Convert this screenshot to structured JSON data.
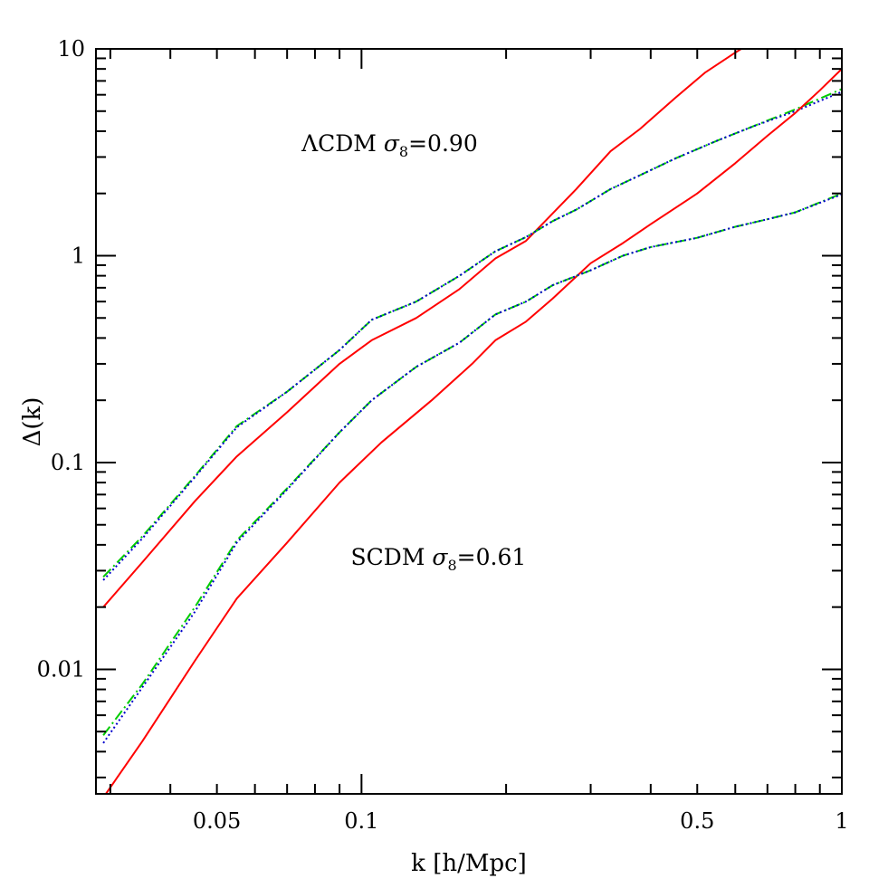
{
  "chart_data": {
    "type": "line",
    "xlabel": "k [h/Mpc]",
    "ylabel": "Δ(k)",
    "xscale": "log",
    "yscale": "log",
    "xlim": [
      0.028,
      1.0
    ],
    "ylim": [
      0.0025,
      10
    ],
    "grid": false,
    "legend": "none",
    "x_tick_labels": [
      {
        "value": 0.05,
        "label": "0.05"
      },
      {
        "value": 0.1,
        "label": "0.1"
      },
      {
        "value": 0.5,
        "label": "0.5"
      },
      {
        "value": 1,
        "label": "1"
      }
    ],
    "y_tick_labels": [
      {
        "value": 0.01,
        "label": "0.01"
      },
      {
        "value": 0.1,
        "label": "0.1"
      },
      {
        "value": 1,
        "label": "1"
      },
      {
        "value": 10,
        "label": "10"
      }
    ],
    "annotations": [
      {
        "prefix": "ΛCDM ",
        "greek": "σ",
        "sub": "8",
        "suffix": "=0.90",
        "at": [
          0.075,
          3.2
        ]
      },
      {
        "prefix": "SCDM ",
        "greek": "σ",
        "sub": "8",
        "suffix": "=0.61",
        "at": [
          0.095,
          0.032
        ]
      }
    ],
    "series": [
      {
        "style": "solid",
        "color": "#ff0000",
        "x": [
          0.029,
          0.035,
          0.045,
          0.055,
          0.07,
          0.09,
          0.105,
          0.13,
          0.16,
          0.19,
          0.22,
          0.25,
          0.28,
          0.33,
          0.38,
          0.45,
          0.52,
          0.6,
          0.68
        ],
        "y": [
          0.02,
          0.033,
          0.065,
          0.107,
          0.175,
          0.3,
          0.39,
          0.5,
          0.69,
          0.97,
          1.18,
          1.6,
          2.1,
          3.2,
          4.1,
          5.8,
          7.7,
          9.6,
          11.5
        ]
      },
      {
        "style": "dash-dot",
        "color": "#00cc00",
        "x": [
          0.029,
          0.035,
          0.045,
          0.055,
          0.07,
          0.09,
          0.105,
          0.13,
          0.16,
          0.19,
          0.22,
          0.25,
          0.28,
          0.33,
          0.38,
          0.45,
          0.55,
          0.65,
          0.8,
          1.0
        ],
        "y": [
          0.028,
          0.044,
          0.086,
          0.15,
          0.22,
          0.35,
          0.49,
          0.6,
          0.8,
          1.05,
          1.23,
          1.47,
          1.67,
          2.1,
          2.45,
          2.95,
          3.6,
          4.2,
          5.1,
          6.4
        ]
      },
      {
        "style": "dotted",
        "color": "#0000cc",
        "x": [
          0.029,
          0.035,
          0.045,
          0.055,
          0.07,
          0.09,
          0.105,
          0.13,
          0.16,
          0.19,
          0.22,
          0.25,
          0.28,
          0.33,
          0.38,
          0.45,
          0.55,
          0.65,
          0.8,
          1.0
        ],
        "y": [
          0.027,
          0.043,
          0.085,
          0.148,
          0.22,
          0.35,
          0.49,
          0.6,
          0.8,
          1.05,
          1.23,
          1.47,
          1.67,
          2.1,
          2.45,
          2.95,
          3.6,
          4.2,
          5.0,
          6.2
        ]
      },
      {
        "style": "solid",
        "color": "#ff0000",
        "x": [
          0.029,
          0.035,
          0.045,
          0.055,
          0.07,
          0.09,
          0.11,
          0.14,
          0.17,
          0.19,
          0.22,
          0.25,
          0.3,
          0.35,
          0.4,
          0.5,
          0.6,
          0.7,
          0.8,
          0.9,
          1.0
        ],
        "y": [
          0.0024,
          0.0045,
          0.011,
          0.022,
          0.041,
          0.08,
          0.125,
          0.2,
          0.3,
          0.39,
          0.48,
          0.62,
          0.92,
          1.15,
          1.42,
          2.0,
          2.8,
          3.8,
          4.9,
          6.3,
          8.0
        ]
      },
      {
        "style": "dash-dot",
        "color": "#00cc00",
        "x": [
          0.029,
          0.035,
          0.045,
          0.055,
          0.07,
          0.09,
          0.105,
          0.13,
          0.16,
          0.19,
          0.22,
          0.25,
          0.3,
          0.35,
          0.4,
          0.5,
          0.6,
          0.7,
          0.8,
          1.0
        ],
        "y": [
          0.0048,
          0.0085,
          0.02,
          0.042,
          0.075,
          0.14,
          0.2,
          0.29,
          0.38,
          0.52,
          0.6,
          0.72,
          0.85,
          1.0,
          1.1,
          1.22,
          1.38,
          1.5,
          1.62,
          2.0
        ]
      },
      {
        "style": "dotted",
        "color": "#0000cc",
        "x": [
          0.029,
          0.035,
          0.045,
          0.055,
          0.07,
          0.09,
          0.105,
          0.13,
          0.16,
          0.19,
          0.22,
          0.25,
          0.3,
          0.35,
          0.4,
          0.5,
          0.6,
          0.7,
          0.8,
          1.0
        ],
        "y": [
          0.0044,
          0.0082,
          0.019,
          0.041,
          0.074,
          0.14,
          0.2,
          0.29,
          0.38,
          0.52,
          0.6,
          0.72,
          0.85,
          1.0,
          1.1,
          1.22,
          1.38,
          1.5,
          1.62,
          1.98
        ]
      }
    ]
  }
}
